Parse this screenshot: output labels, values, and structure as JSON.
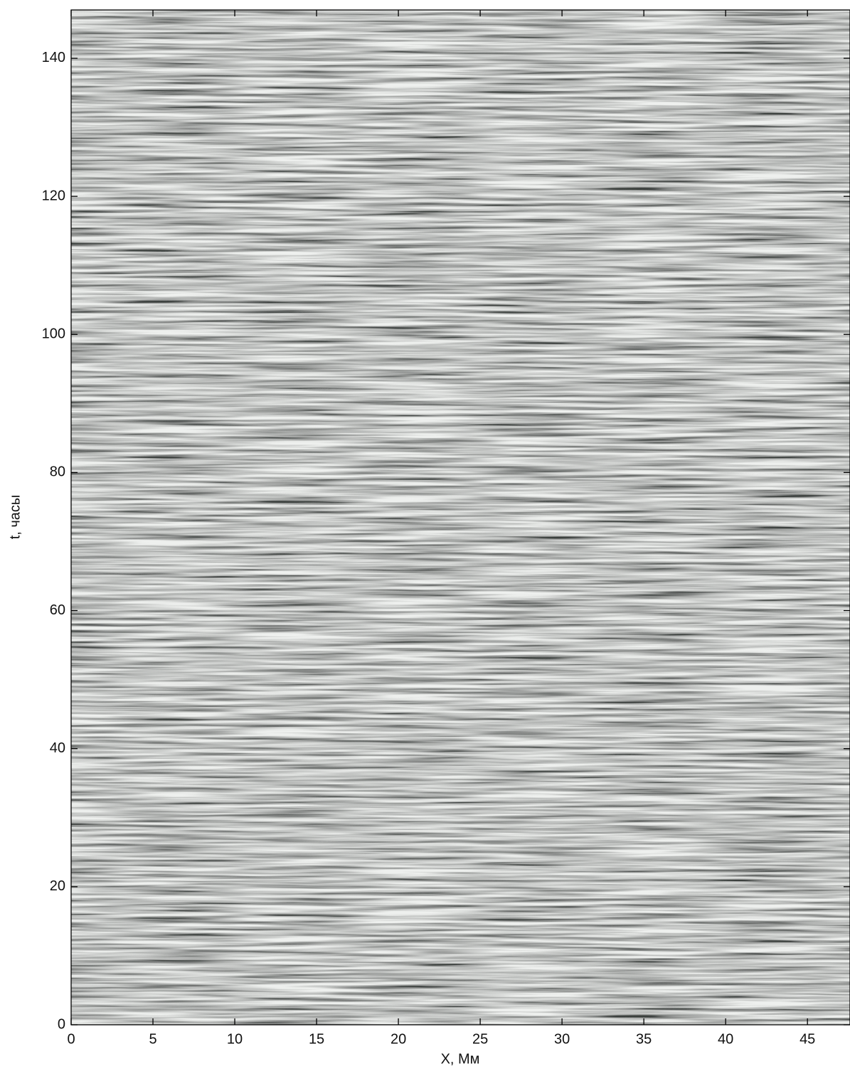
{
  "chart_data": {
    "type": "image",
    "x_label": "X, Мм",
    "y_label": "t, часы",
    "xlim": [
      0,
      47.6
    ],
    "xticks": [
      0,
      5,
      10,
      15,
      20,
      25,
      30,
      35,
      40,
      45
    ],
    "ylim": [
      0,
      147
    ],
    "yticks": [
      0,
      20,
      40,
      60,
      80,
      100,
      120,
      140
    ]
  }
}
